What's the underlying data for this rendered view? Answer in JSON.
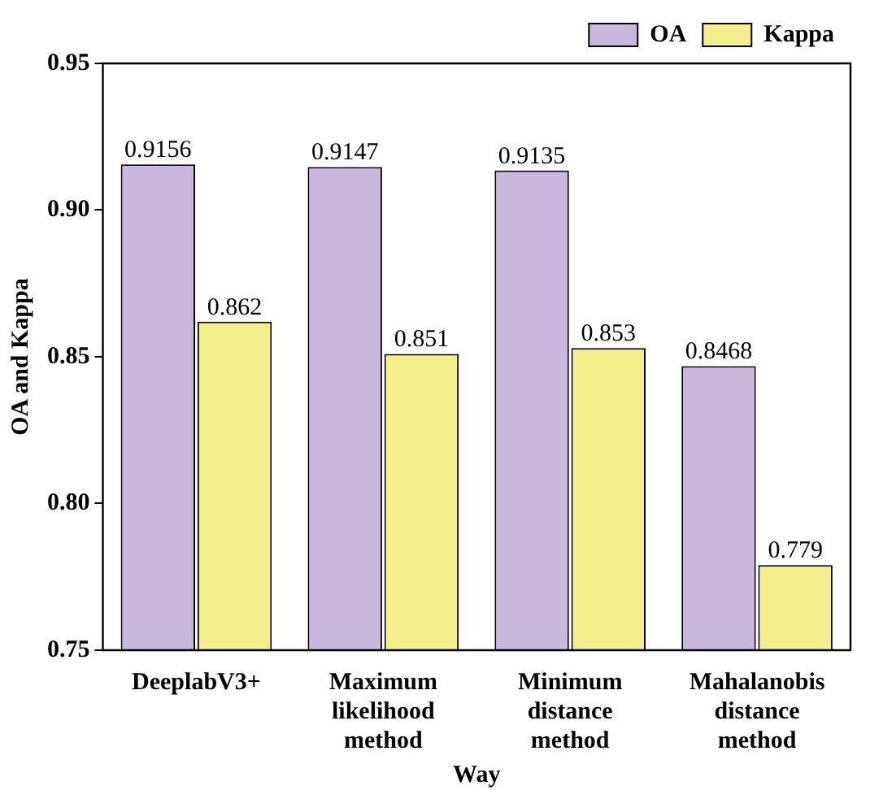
{
  "chart_data": {
    "type": "bar",
    "xlabel": "Way",
    "ylabel": "OA and Kappa",
    "categories": [
      "DeeplabV3+",
      "Maximum likelihood method",
      "Minimum distance method",
      "Mahalanobis distance method"
    ],
    "series": [
      {
        "name": "OA",
        "color": "#c9b7dd",
        "values": [
          0.9156,
          0.9147,
          0.9135,
          0.8468
        ]
      },
      {
        "name": "Kappa",
        "color": "#f2ee8c",
        "values": [
          0.862,
          0.851,
          0.853,
          0.779
        ]
      }
    ],
    "ylim": [
      0.75,
      0.95
    ],
    "yticks": [
      0.75,
      {
        "value": 0.8,
        "label": "0.80"
      },
      0.85,
      {
        "value": 0.9,
        "label": "0.90"
      },
      0.95
    ],
    "data_labels": true,
    "legend": "top right",
    "grid": false
  }
}
